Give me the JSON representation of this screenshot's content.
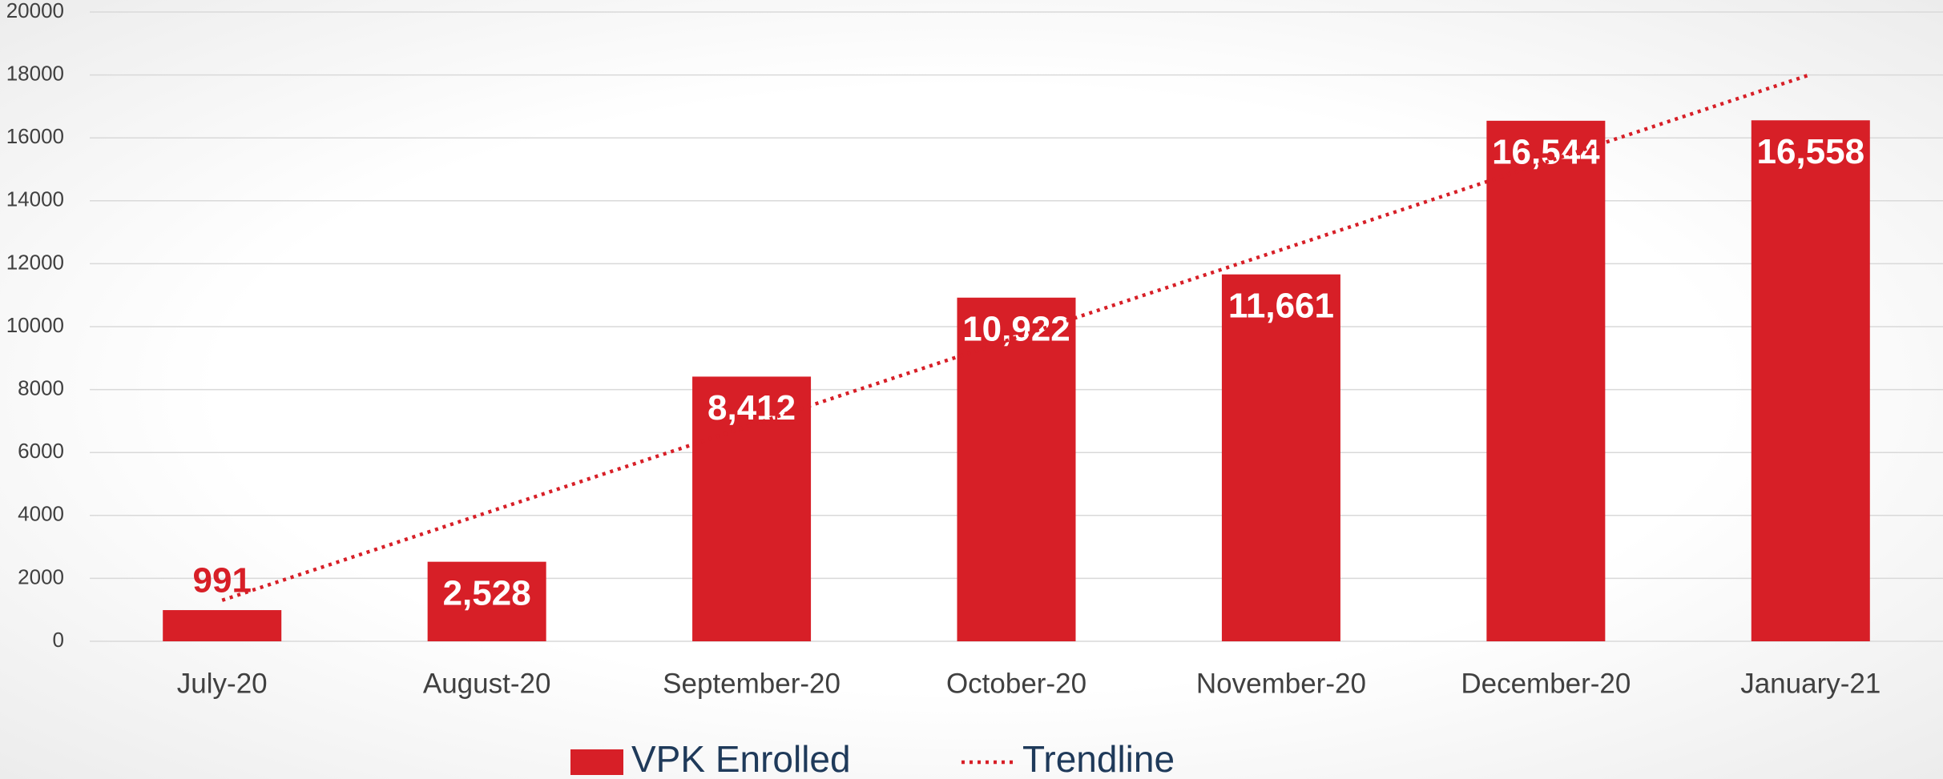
{
  "chart_data": {
    "type": "bar",
    "categories": [
      "July-20",
      "August-20",
      "September-20",
      "October-20",
      "November-20",
      "December-20",
      "January-21"
    ],
    "series": [
      {
        "name": "VPK Enrolled",
        "color": "#d71f27",
        "values": [
          991,
          2528,
          8412,
          10922,
          11661,
          16544,
          16558
        ],
        "value_labels": [
          "991",
          "2,528",
          "8,412",
          "10,922",
          "11,661",
          "16,544",
          "16,558"
        ]
      },
      {
        "name": "Trendline",
        "type": "line",
        "style": "dotted",
        "color": "#d71f27",
        "values": [
          1304,
          4089,
          6874,
          9659,
          12444,
          15230,
          18015
        ]
      }
    ],
    "ylim": [
      0,
      20000
    ],
    "yticks": [
      0,
      2000,
      4000,
      6000,
      8000,
      10000,
      12000,
      14000,
      16000,
      18000,
      20000
    ],
    "grid": true
  }
}
